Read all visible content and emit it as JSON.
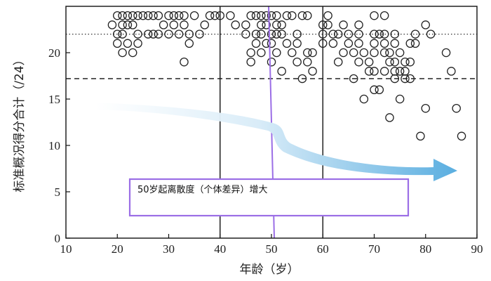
{
  "chart_data": {
    "type": "scatter",
    "xlabel": "年龄（岁）",
    "ylabel": "标准概况得分合计（/24）",
    "xlim": [
      10,
      90
    ],
    "ylim": [
      0,
      25
    ],
    "xticks": [
      10,
      20,
      30,
      40,
      50,
      60,
      70,
      80,
      90
    ],
    "yticks": [
      0,
      5,
      10,
      15,
      20
    ],
    "vertical_lines": [
      40,
      60
    ],
    "highlight_line_x": 50,
    "highlight_line_color": "#9b6ee6",
    "dotted_hline_y": 22,
    "dashed_hline_y": 17.2,
    "annotation": "50岁起离散度（个体差异）增大",
    "annotation_color": "#9b6ee6",
    "arrow_color": "#5aaee0",
    "points": [
      [
        19,
        23
      ],
      [
        20,
        24
      ],
      [
        20,
        22
      ],
      [
        20,
        21
      ],
      [
        21,
        24
      ],
      [
        21,
        23
      ],
      [
        21,
        22
      ],
      [
        21,
        20
      ],
      [
        22,
        24
      ],
      [
        22,
        23
      ],
      [
        22,
        21
      ],
      [
        23,
        24
      ],
      [
        23,
        23
      ],
      [
        23,
        20
      ],
      [
        24,
        24
      ],
      [
        24,
        22
      ],
      [
        24,
        21
      ],
      [
        25,
        24
      ],
      [
        26,
        24
      ],
      [
        26,
        22
      ],
      [
        27,
        24
      ],
      [
        27,
        22
      ],
      [
        28,
        24
      ],
      [
        28,
        22
      ],
      [
        29,
        23
      ],
      [
        30,
        24
      ],
      [
        30,
        22
      ],
      [
        31,
        24
      ],
      [
        31,
        23
      ],
      [
        32,
        24
      ],
      [
        32,
        22
      ],
      [
        33,
        24
      ],
      [
        33,
        23
      ],
      [
        33,
        19
      ],
      [
        34,
        22
      ],
      [
        34,
        21
      ],
      [
        35,
        24
      ],
      [
        36,
        22
      ],
      [
        37,
        23
      ],
      [
        38,
        24
      ],
      [
        39,
        24
      ],
      [
        40,
        24
      ],
      [
        42,
        24
      ],
      [
        43,
        23
      ],
      [
        45,
        23
      ],
      [
        45,
        22
      ],
      [
        46,
        24
      ],
      [
        46,
        20
      ],
      [
        46,
        19
      ],
      [
        47,
        24
      ],
      [
        47,
        22
      ],
      [
        47,
        21
      ],
      [
        48,
        24
      ],
      [
        48,
        23
      ],
      [
        48,
        22
      ],
      [
        48,
        20
      ],
      [
        49,
        24
      ],
      [
        49,
        23
      ],
      [
        49,
        21
      ],
      [
        50,
        24
      ],
      [
        50,
        22
      ],
      [
        50,
        21
      ],
      [
        50,
        19
      ],
      [
        51,
        24
      ],
      [
        51,
        23
      ],
      [
        51,
        22
      ],
      [
        51,
        20
      ],
      [
        52,
        23
      ],
      [
        52,
        22
      ],
      [
        52,
        18
      ],
      [
        53,
        24
      ],
      [
        53,
        21
      ],
      [
        54,
        24
      ],
      [
        54,
        20
      ],
      [
        55,
        22
      ],
      [
        55,
        21
      ],
      [
        55,
        19
      ],
      [
        56,
        24
      ],
      [
        56,
        17.2
      ],
      [
        57,
        24
      ],
      [
        57,
        20
      ],
      [
        57,
        19
      ],
      [
        58,
        20
      ],
      [
        58,
        18
      ],
      [
        60,
        23
      ],
      [
        60,
        22
      ],
      [
        60,
        21
      ],
      [
        61,
        24
      ],
      [
        61,
        23
      ],
      [
        62,
        22
      ],
      [
        62,
        21
      ],
      [
        63,
        22
      ],
      [
        63,
        19
      ],
      [
        64,
        23
      ],
      [
        64,
        20
      ],
      [
        65,
        22
      ],
      [
        65,
        21
      ],
      [
        66,
        20
      ],
      [
        66,
        17.2
      ],
      [
        67,
        23
      ],
      [
        67,
        22
      ],
      [
        67,
        21
      ],
      [
        67,
        19
      ],
      [
        68,
        20
      ],
      [
        68,
        15
      ],
      [
        69,
        19
      ],
      [
        69,
        18
      ],
      [
        70,
        24
      ],
      [
        70,
        22
      ],
      [
        70,
        21
      ],
      [
        70,
        20
      ],
      [
        70,
        18
      ],
      [
        70,
        16
      ],
      [
        71,
        16
      ],
      [
        71,
        22
      ],
      [
        72,
        24
      ],
      [
        72,
        22
      ],
      [
        72,
        21
      ],
      [
        72,
        20
      ],
      [
        72,
        18
      ],
      [
        73,
        13
      ],
      [
        73,
        20
      ],
      [
        73,
        19
      ],
      [
        74,
        22
      ],
      [
        74,
        21
      ],
      [
        74,
        19
      ],
      [
        74,
        18
      ],
      [
        74,
        17.2
      ],
      [
        75,
        20
      ],
      [
        75,
        18
      ],
      [
        75,
        15
      ],
      [
        76,
        19
      ],
      [
        76,
        18
      ],
      [
        76,
        17.2
      ],
      [
        77,
        19
      ],
      [
        77,
        17.2
      ],
      [
        77,
        21
      ],
      [
        78,
        22
      ],
      [
        78,
        21
      ],
      [
        79,
        11
      ],
      [
        80,
        14
      ],
      [
        80,
        23
      ],
      [
        81,
        22
      ],
      [
        84,
        20
      ],
      [
        85,
        18
      ],
      [
        86,
        14
      ],
      [
        87,
        11
      ]
    ]
  }
}
